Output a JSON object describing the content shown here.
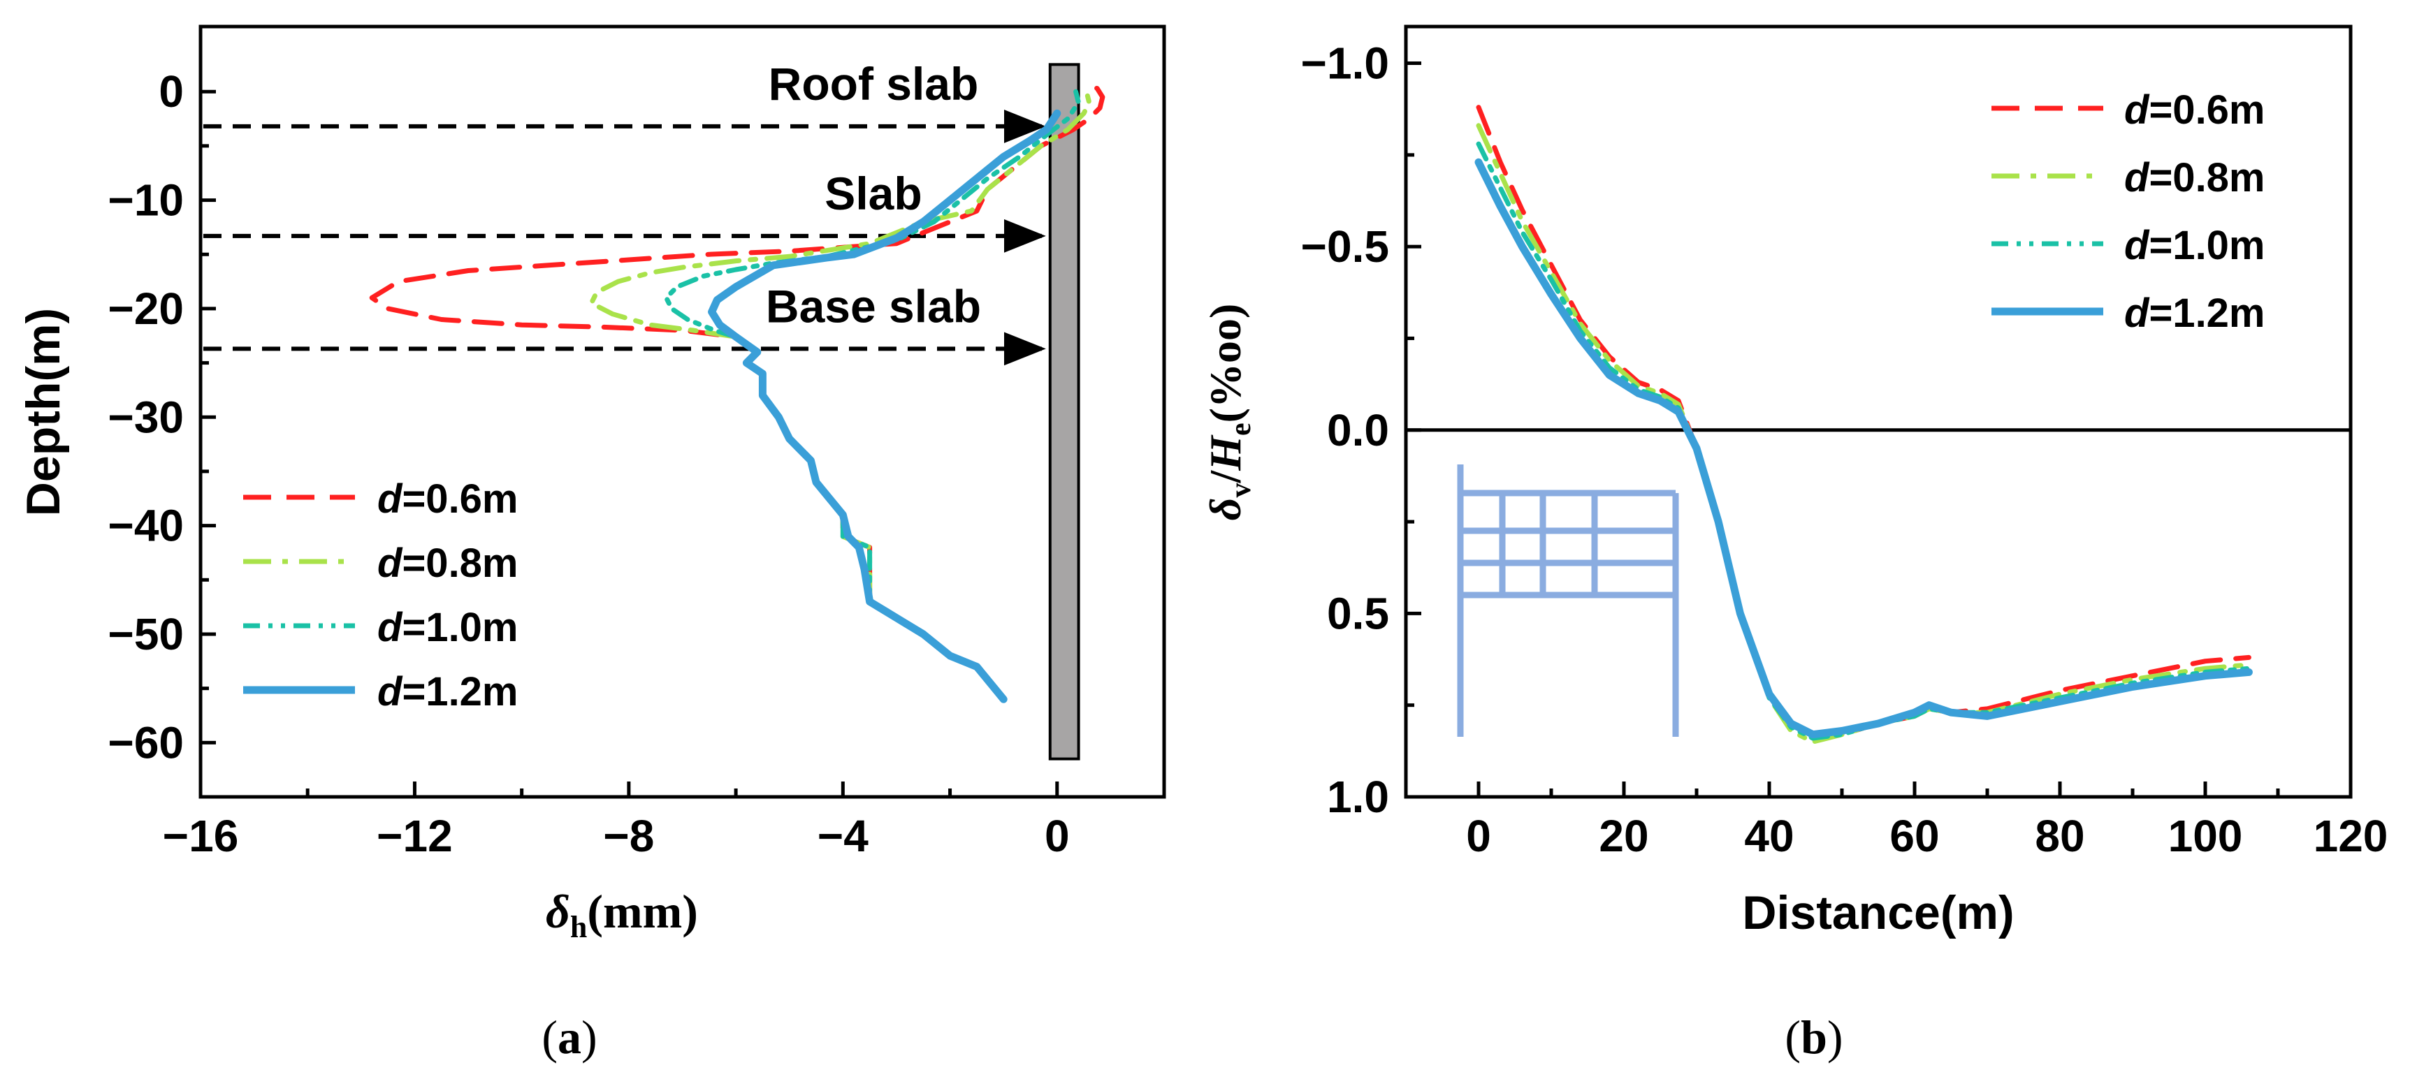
{
  "panels": {
    "a": {
      "caption_label": "a"
    },
    "b": {
      "caption_label": "b"
    }
  },
  "chart_data": [
    {
      "type": "line",
      "panel": "a",
      "xlabel_symbol": "δ",
      "xlabel_subscript": "h",
      "xlabel_unit": "(mm)",
      "ylabel": "Depth(m)",
      "xlim": [
        -16,
        2
      ],
      "ylim": [
        -65,
        6
      ],
      "x_ticks": [
        -16,
        -12,
        -8,
        -4,
        0
      ],
      "x_tick_labels": [
        "−16",
        "−12",
        "−8",
        "−4",
        "0"
      ],
      "y_ticks": [
        0,
        -10,
        -20,
        -30,
        -40,
        -50,
        -60
      ],
      "y_tick_labels": [
        "0",
        "−10",
        "−20",
        "−30",
        "−40",
        "−50",
        "−60"
      ],
      "grid": false,
      "legend_position": "bottom-left",
      "wall": {
        "x_range": [
          0,
          0.35
        ],
        "depth_range": [
          2.5,
          -61.5
        ],
        "color": "#a7a5a5"
      },
      "annotations": [
        {
          "text": "Roof slab",
          "depth": -3.2
        },
        {
          "text": "Slab",
          "depth": -13.3
        },
        {
          "text": "Base slab",
          "depth": -23.7
        }
      ],
      "series": [
        {
          "name_italic": "d",
          "name_rest": "=0.6m",
          "color": "#ff2020",
          "dash": "dashed",
          "x": [
            -1,
            -1.5,
            -2,
            -2.5,
            -3,
            -3.5,
            -3.5,
            -3.5,
            -4,
            -4,
            -4.5,
            -4.6,
            -5,
            -5.2,
            -5.5,
            -5.5,
            -5.8,
            -5.6,
            -6,
            -7,
            -8.5,
            -10,
            -11.5,
            -12.5,
            -12.8,
            -12.3,
            -11,
            -9.5,
            -8,
            -6.5,
            -5,
            -3,
            -2,
            -1.5,
            -1.3,
            -0.8,
            -0.3,
            0.3,
            0.6,
            0.8,
            0.85,
            0.75,
            0.6
          ],
          "y": [
            -56,
            -53,
            -52,
            -50,
            -48.5,
            -47,
            -44,
            -42,
            -41,
            -39,
            -36,
            -34,
            -32,
            -30,
            -28,
            -26,
            -25,
            -24,
            -22.6,
            -22,
            -21.7,
            -21.5,
            -21,
            -20,
            -19,
            -17.5,
            -16.5,
            -16,
            -15.5,
            -15,
            -14.7,
            -14,
            -12,
            -11,
            -9,
            -7,
            -5,
            -3.5,
            -2.5,
            -1.5,
            -0.5,
            0.3,
            0.6
          ]
        },
        {
          "name_italic": "d",
          "name_rest": "=0.8m",
          "color": "#a9e24a",
          "dash": "dashdot",
          "x": [
            -1,
            -1.5,
            -2,
            -2.5,
            -3,
            -3.5,
            -3.5,
            -3.5,
            -4,
            -4,
            -4.5,
            -4.6,
            -5,
            -5.2,
            -5.5,
            -5.5,
            -5.8,
            -5.6,
            -6,
            -6.8,
            -7.6,
            -8.3,
            -8.7,
            -8.6,
            -8.2,
            -7.6,
            -7,
            -6,
            -5,
            -3.5,
            -2.5,
            -1.6,
            -1.3,
            -0.8,
            -0.3,
            0.2,
            0.5,
            0.6,
            0.55
          ],
          "y": [
            -56,
            -53,
            -52,
            -50,
            -48.5,
            -47,
            -44,
            -42,
            -41,
            -39,
            -36,
            -34,
            -32,
            -30,
            -28,
            -26,
            -25,
            -24,
            -22.6,
            -22,
            -21.5,
            -20.5,
            -19.5,
            -18.5,
            -17.5,
            -16.7,
            -16.2,
            -15.6,
            -15.2,
            -14,
            -12,
            -11,
            -9,
            -7,
            -5,
            -3.5,
            -2,
            -1,
            0
          ]
        },
        {
          "name_italic": "d",
          "name_rest": "=1.0m",
          "color": "#1ac1a6",
          "dash": "dashdotdot",
          "x": [
            -1,
            -1.5,
            -2,
            -2.5,
            -3,
            -3.5,
            -3.5,
            -3.5,
            -4,
            -4,
            -4.5,
            -4.6,
            -5,
            -5.2,
            -5.5,
            -5.5,
            -5.8,
            -5.6,
            -6,
            -6.4,
            -6.9,
            -7.2,
            -7.3,
            -7.1,
            -6.6,
            -6,
            -5.3,
            -4.3,
            -3,
            -2.3,
            -1.8,
            -1.3,
            -0.7,
            -0.2,
            0.2,
            0.4,
            0.35
          ],
          "y": [
            -56,
            -53,
            -52,
            -50,
            -48.5,
            -47,
            -44,
            -42,
            -41,
            -39,
            -36,
            -34,
            -32,
            -30,
            -28,
            -26,
            -25,
            -24,
            -22.6,
            -22,
            -21,
            -20,
            -19,
            -18,
            -17,
            -16.4,
            -15.8,
            -15.2,
            -13.7,
            -12,
            -10,
            -8,
            -6,
            -4,
            -2.5,
            -1,
            0
          ]
        },
        {
          "name_italic": "d",
          "name_rest": "=1.2m",
          "color": "#3a9fd8",
          "dash": "solid",
          "x": [
            -1,
            -1.5,
            -2,
            -2.5,
            -3,
            -3.5,
            -3.6,
            -3.7,
            -3.9,
            -4,
            -4.5,
            -4.6,
            -5,
            -5.2,
            -5.5,
            -5.5,
            -5.8,
            -5.6,
            -6,
            -6.3,
            -6.45,
            -6.35,
            -6,
            -5.3,
            -4.3,
            -3.8,
            -3,
            -2.5,
            -2,
            -1.5,
            -1,
            -0.5,
            -0.2,
            0
          ],
          "y": [
            -56,
            -53,
            -52,
            -50,
            -48.5,
            -47,
            -44,
            -42,
            -41,
            -39,
            -36,
            -34,
            -32,
            -30,
            -28,
            -26,
            -25,
            -24,
            -22.6,
            -21.5,
            -20.3,
            -19.2,
            -18,
            -16,
            -15.3,
            -15,
            -13.5,
            -12,
            -10,
            -8,
            -6,
            -4.5,
            -3.5,
            -2
          ]
        }
      ]
    },
    {
      "type": "line",
      "panel": "b",
      "xlabel": "Distance(m)",
      "ylabel_symbol": "δ",
      "ylabel_sub1": "v",
      "ylabel_mid": "/",
      "ylabel_symbol2": "H",
      "ylabel_sub2": "e",
      "ylabel_unit": "(%oo)",
      "xlim": [
        -10,
        120
      ],
      "ylim": [
        -1.1,
        1.0
      ],
      "y_inverted": true,
      "x_ticks": [
        0,
        20,
        40,
        60,
        80,
        100,
        120
      ],
      "x_tick_labels": [
        "0",
        "20",
        "40",
        "60",
        "80",
        "100",
        "120"
      ],
      "y_ticks": [
        -1.0,
        -0.5,
        0.0,
        0.5,
        1.0
      ],
      "y_tick_labels": [
        "−1.0",
        "−0.5",
        "0.0",
        "0.5",
        "1.0"
      ],
      "zero_line": true,
      "grid": false,
      "legend_position": "top-right",
      "inset_structure": {
        "description": "building frame sketch",
        "color": "#8aace0"
      },
      "series": [
        {
          "name_italic": "d",
          "name_rest": "=0.6m",
          "color": "#ff2020",
          "dash": "dashed",
          "x": [
            0,
            3,
            6,
            10,
            14,
            18,
            22,
            25,
            27.5,
            30,
            33,
            36,
            40,
            43,
            46,
            50,
            55,
            60,
            62,
            65,
            70,
            80,
            90,
            100,
            106
          ],
          "y": [
            -0.88,
            -0.73,
            -0.6,
            -0.45,
            -0.3,
            -0.2,
            -0.13,
            -0.11,
            -0.08,
            0.05,
            0.25,
            0.5,
            0.72,
            0.8,
            0.84,
            0.83,
            0.8,
            0.78,
            0.76,
            0.77,
            0.76,
            0.71,
            0.67,
            0.63,
            0.62
          ]
        },
        {
          "name_italic": "d",
          "name_rest": "=0.8m",
          "color": "#a9e24a",
          "dash": "dashdot",
          "x": [
            0,
            3,
            6,
            10,
            14,
            18,
            22,
            25,
            27.5,
            30,
            33,
            36,
            40,
            43,
            46,
            50,
            55,
            60,
            62,
            65,
            70,
            80,
            90,
            100,
            106
          ],
          "y": [
            -0.83,
            -0.7,
            -0.57,
            -0.43,
            -0.29,
            -0.19,
            -0.12,
            -0.1,
            -0.07,
            0.05,
            0.25,
            0.5,
            0.73,
            0.82,
            0.85,
            0.83,
            0.8,
            0.78,
            0.76,
            0.77,
            0.77,
            0.72,
            0.68,
            0.65,
            0.64
          ]
        },
        {
          "name_italic": "d",
          "name_rest": "=1.0m",
          "color": "#1ac1a6",
          "dash": "dashdotdot",
          "x": [
            0,
            3,
            6,
            10,
            14,
            18,
            22,
            25,
            27.5,
            30,
            33,
            36,
            40,
            43,
            46,
            50,
            55,
            60,
            62,
            65,
            70,
            80,
            90,
            100,
            106
          ],
          "y": [
            -0.78,
            -0.66,
            -0.54,
            -0.41,
            -0.27,
            -0.17,
            -0.11,
            -0.09,
            -0.06,
            0.05,
            0.25,
            0.5,
            0.73,
            0.81,
            0.84,
            0.83,
            0.8,
            0.78,
            0.76,
            0.77,
            0.77,
            0.73,
            0.69,
            0.66,
            0.65
          ]
        },
        {
          "name_italic": "d",
          "name_rest": "=1.2m",
          "color": "#3a9fd8",
          "dash": "solid",
          "x": [
            0,
            3,
            6,
            10,
            14,
            18,
            22,
            25,
            27.5,
            30,
            33,
            36,
            40,
            43,
            46,
            50,
            55,
            60,
            62,
            65,
            70,
            80,
            90,
            100,
            106
          ],
          "y": [
            -0.73,
            -0.61,
            -0.5,
            -0.37,
            -0.25,
            -0.15,
            -0.1,
            -0.08,
            -0.05,
            0.05,
            0.25,
            0.5,
            0.72,
            0.8,
            0.83,
            0.82,
            0.8,
            0.77,
            0.75,
            0.77,
            0.78,
            0.74,
            0.7,
            0.67,
            0.66
          ]
        }
      ]
    }
  ]
}
